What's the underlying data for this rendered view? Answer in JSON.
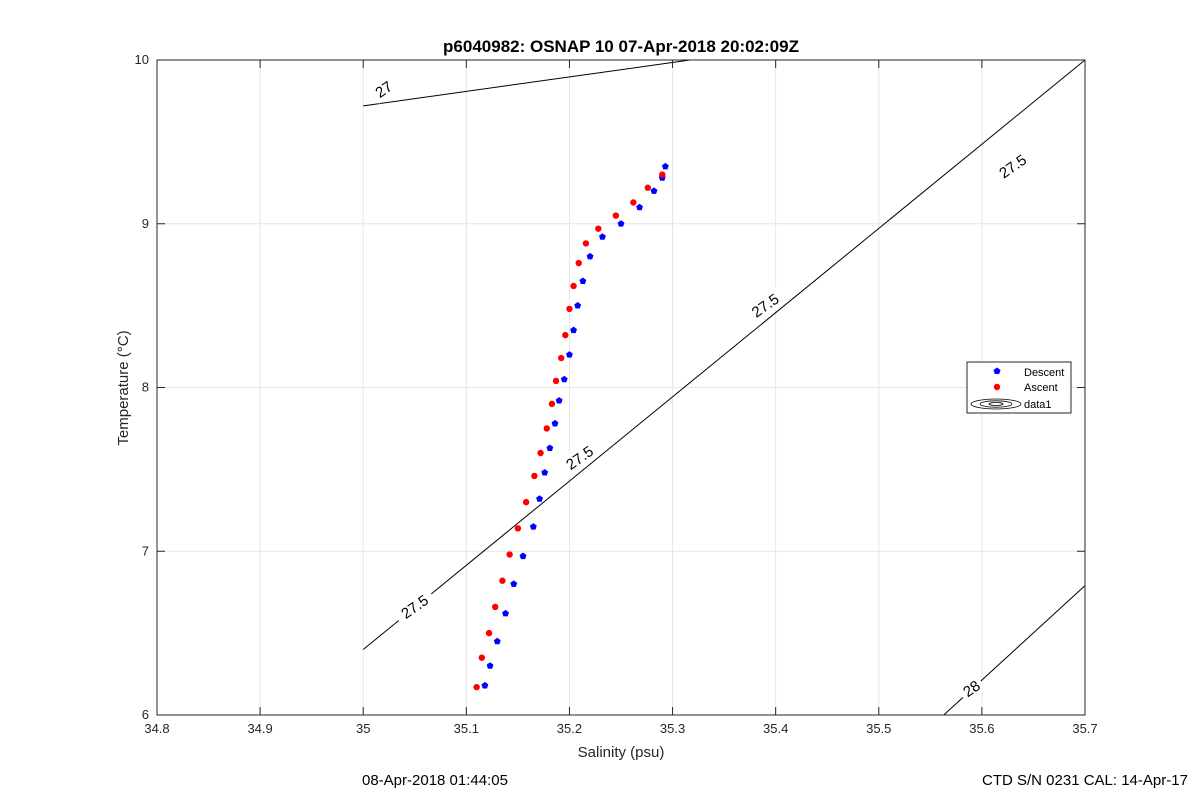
{
  "chart_data": {
    "type": "scatter",
    "title": "p6040982: OSNAP 10 07-Apr-2018 20:02:09Z",
    "xlabel": "Salinity (psu)",
    "ylabel": "Temperature (°C)",
    "xlim": [
      34.8,
      35.7
    ],
    "ylim": [
      6,
      10
    ],
    "xticks": [
      "34.8",
      "34.9",
      "35",
      "35.1",
      "35.2",
      "35.3",
      "35.4",
      "35.5",
      "35.6",
      "35.7"
    ],
    "yticks": [
      "6",
      "7",
      "8",
      "9",
      "10"
    ],
    "grid": true,
    "legend_position": "right",
    "legend": [
      "Descent",
      "Ascent",
      "data1"
    ],
    "series": [
      {
        "name": "Descent",
        "color": "#0000ff",
        "x": [
          35.118,
          35.123,
          35.13,
          35.138,
          35.146,
          35.155,
          35.165,
          35.171,
          35.176,
          35.181,
          35.186,
          35.19,
          35.195,
          35.2,
          35.204,
          35.208,
          35.213,
          35.22,
          35.232,
          35.25,
          35.268,
          35.282,
          35.29,
          35.293
        ],
        "y": [
          6.18,
          6.3,
          6.45,
          6.62,
          6.8,
          6.97,
          7.15,
          7.32,
          7.48,
          7.63,
          7.78,
          7.92,
          8.05,
          8.2,
          8.35,
          8.5,
          8.65,
          8.8,
          8.92,
          9.0,
          9.1,
          9.2,
          9.28,
          9.35
        ]
      },
      {
        "name": "Ascent",
        "color": "#ff0000",
        "x": [
          35.11,
          35.115,
          35.122,
          35.128,
          35.135,
          35.142,
          35.15,
          35.158,
          35.166,
          35.172,
          35.178,
          35.183,
          35.187,
          35.192,
          35.196,
          35.2,
          35.204,
          35.209,
          35.216,
          35.228,
          35.245,
          35.262,
          35.276,
          35.29
        ],
        "y": [
          6.17,
          6.35,
          6.5,
          6.66,
          6.82,
          6.98,
          7.14,
          7.3,
          7.46,
          7.6,
          7.75,
          7.9,
          8.04,
          8.18,
          8.32,
          8.48,
          8.62,
          8.76,
          8.88,
          8.97,
          9.05,
          9.13,
          9.22,
          9.3
        ]
      }
    ],
    "isopycnals": [
      {
        "label": "27",
        "x": [
          35.0,
          35.317
        ],
        "y": [
          9.72,
          10.0
        ]
      },
      {
        "label": "27.5",
        "x": [
          35.0,
          35.7
        ],
        "y": [
          6.4,
          10.0
        ]
      },
      {
        "label": "28",
        "x": [
          35.563,
          35.7
        ],
        "y": [
          6.0,
          6.79
        ]
      }
    ],
    "contour_labels": [
      {
        "text": "27",
        "x": 35.02,
        "y": 9.82
      },
      {
        "text": "27.5",
        "x": 35.05,
        "y": 6.66
      },
      {
        "text": "27.5",
        "x": 35.21,
        "y": 7.57
      },
      {
        "text": "27.5",
        "x": 35.39,
        "y": 8.5
      },
      {
        "text": "27.5",
        "x": 35.63,
        "y": 9.35
      },
      {
        "text": "28",
        "x": 35.59,
        "y": 6.16
      }
    ]
  },
  "footer": {
    "left": "08-Apr-2018 01:44:05",
    "right": "CTD S/N 0231  CAL: 14-Apr-17"
  }
}
